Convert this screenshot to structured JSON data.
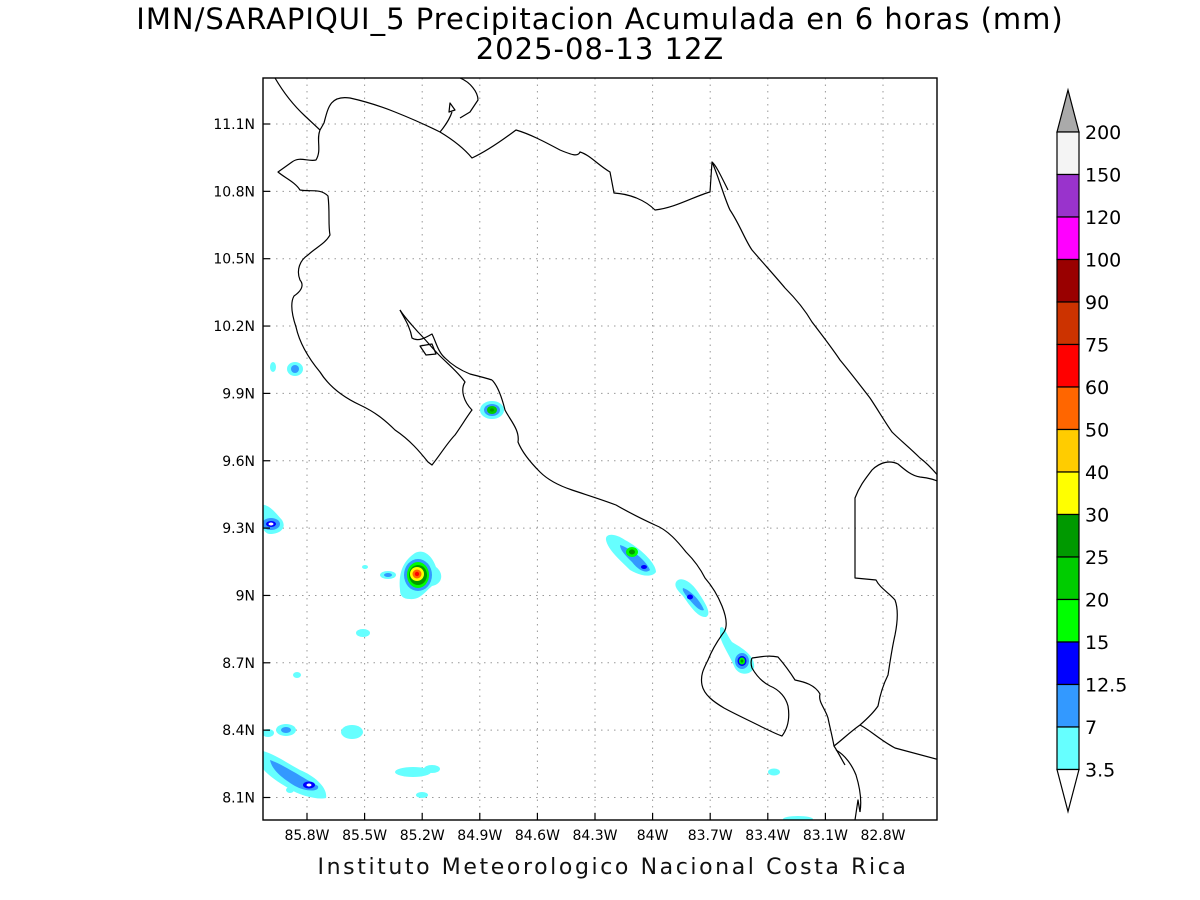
{
  "title": {
    "line1": "IMN/SARAPIQUI_5 Precipitacion Acumulada en 6 horas (mm)",
    "line2": "2025-08-13 12Z"
  },
  "credit": "Instituto Meteorologico Nacional Costa Rica",
  "map": {
    "x_ticks": [
      "85.8W",
      "85.5W",
      "85.2W",
      "84.9W",
      "84.6W",
      "84.3W",
      "84W",
      "83.7W",
      "83.4W",
      "83.1W",
      "82.8W"
    ],
    "y_ticks": [
      "11.1N",
      "10.8N",
      "10.5N",
      "10.2N",
      "9.9N",
      "9.6N",
      "9.3N",
      "9N",
      "8.7N",
      "8.4N",
      "8.1N"
    ],
    "grid": "dotted",
    "precip_cells": [
      {
        "lon": -84.82,
        "lat": 9.84,
        "peak_mm": 25
      },
      {
        "lon": -85.18,
        "lat": 9.1,
        "peak_mm": 75
      },
      {
        "lon": -84.06,
        "lat": 9.19,
        "peak_mm": 25
      },
      {
        "lon": -83.78,
        "lat": 9.0,
        "peak_mm": 12.5
      },
      {
        "lon": -83.53,
        "lat": 8.7,
        "peak_mm": 20
      },
      {
        "lon": -85.96,
        "lat": 9.33,
        "peak_mm": 12.5
      },
      {
        "lon": -85.77,
        "lat": 8.16,
        "peak_mm": 12.5
      },
      {
        "lon": -85.82,
        "lat": 10.02,
        "peak_mm": 7
      },
      {
        "lon": -85.85,
        "lat": 8.4,
        "peak_mm": 7
      }
    ]
  },
  "colorbar": {
    "labels": [
      "3.5",
      "7",
      "12.5",
      "15",
      "20",
      "25",
      "30",
      "40",
      "50",
      "60",
      "75",
      "90",
      "100",
      "120",
      "150",
      "200"
    ],
    "colors": [
      "#66ffff",
      "#3399ff",
      "#0000ff",
      "#00ff00",
      "#00cc00",
      "#009900",
      "#ffff00",
      "#ffcc00",
      "#ff6600",
      "#ff0000",
      "#cc3300",
      "#990000",
      "#ff00ff",
      "#9933cc",
      "#f4f4f4",
      "#aaaaaa"
    ]
  }
}
